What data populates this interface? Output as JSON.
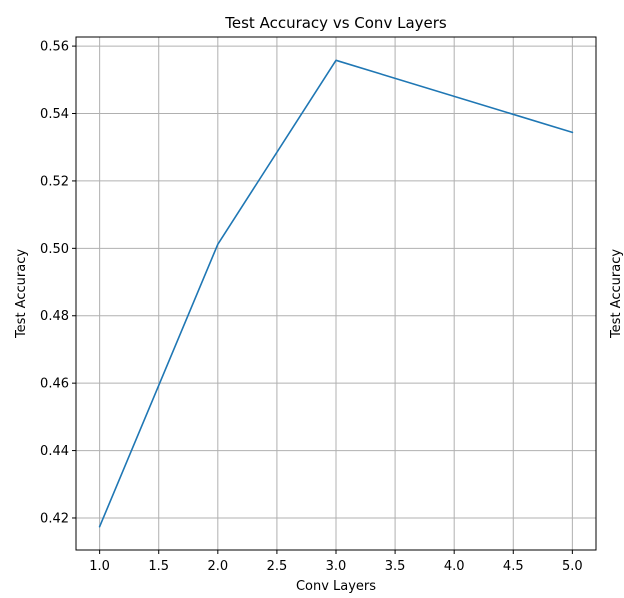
{
  "chart_data": {
    "type": "line",
    "title": "Test Accuracy vs Conv Layers",
    "xlabel": "Conv Layers",
    "ylabel": "Test Accuracy",
    "secondary_ylabel": "Test Accuracy",
    "x": [
      1,
      2,
      3,
      5
    ],
    "series": [
      {
        "values": [
          0.4174,
          0.5012,
          0.5558,
          0.5344
        ],
        "color": "#1f77b4"
      }
    ],
    "xlim": [
      0.8,
      5.2
    ],
    "ylim": [
      0.4105,
      0.5627
    ],
    "xticks": [
      "1.0",
      "1.5",
      "2.0",
      "2.5",
      "3.0",
      "3.5",
      "4.0",
      "4.5",
      "5.0"
    ],
    "yticks": [
      "0.42",
      "0.44",
      "0.46",
      "0.48",
      "0.50",
      "0.52",
      "0.54",
      "0.56"
    ],
    "grid": true,
    "legend": "none"
  }
}
